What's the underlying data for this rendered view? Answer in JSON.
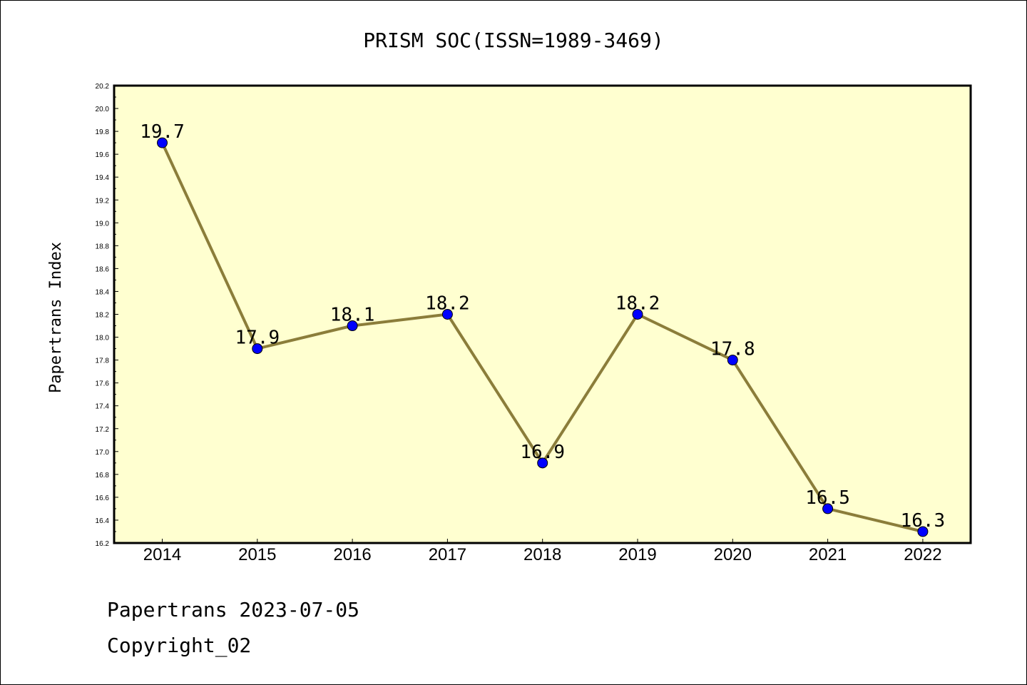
{
  "chart_data": {
    "type": "line",
    "title": "PRISM SOC(ISSN=1989-3469)",
    "xlabel": "",
    "ylabel": "Papertrans Index",
    "categories": [
      "2014",
      "2015",
      "2016",
      "2017",
      "2018",
      "2019",
      "2020",
      "2021",
      "2022"
    ],
    "series": [
      {
        "values": [
          19.7,
          17.9,
          18.1,
          18.2,
          16.9,
          18.2,
          17.8,
          16.5,
          16.3
        ],
        "data_labels": [
          "19.7",
          "17.9",
          "18.1",
          "18.2",
          "16.9",
          "18.2",
          "17.8",
          "16.5",
          "16.3"
        ]
      }
    ],
    "ylim": [
      16.2,
      20.2
    ],
    "yticks": [
      "16.2",
      "16.4",
      "16.6",
      "16.8",
      "17.0",
      "17.2",
      "17.4",
      "17.6",
      "17.8",
      "18.0",
      "18.2",
      "18.4",
      "18.6",
      "18.8",
      "19.0",
      "19.2",
      "19.4",
      "19.6",
      "19.8",
      "20.0",
      "20.2"
    ],
    "grid": false,
    "colors": {
      "plot_background": "#ffffd0",
      "line": "#8b7d3a",
      "marker": "#0000ff"
    }
  },
  "footer": {
    "date_line": "Papertrans 2023-07-05",
    "copyright": "Copyright_02"
  }
}
